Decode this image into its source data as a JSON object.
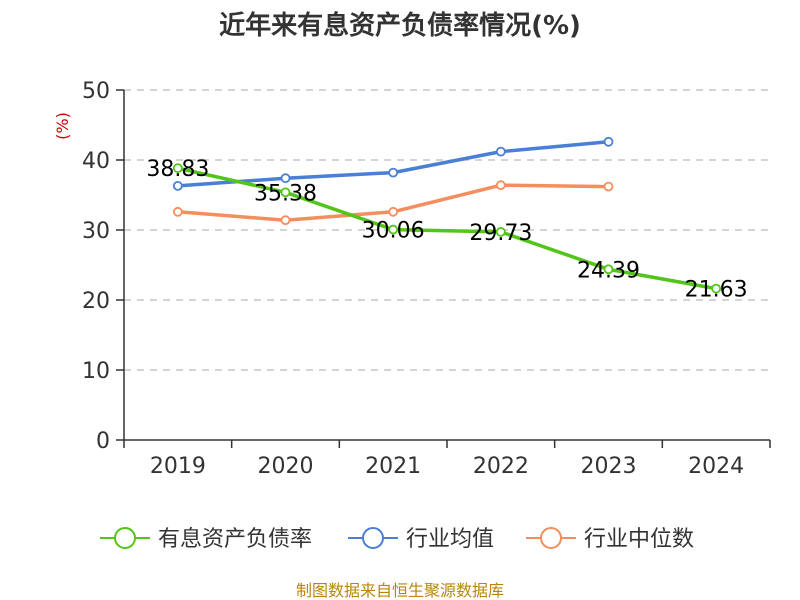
{
  "chart_data": {
    "type": "line",
    "title": "近年来有息资产负债率情况(%)",
    "ylabel": "(%)",
    "xlabel": "",
    "categories": [
      "2019",
      "2020",
      "2021",
      "2022",
      "2023",
      "2024"
    ],
    "ylim": [
      0,
      50
    ],
    "yticks": [
      0,
      10,
      20,
      30,
      40,
      50
    ],
    "grid": true,
    "legend_position": "bottom",
    "series": [
      {
        "name": "有息资产负债率",
        "color": "#52c41a",
        "values": [
          38.83,
          35.38,
          30.06,
          29.73,
          24.39,
          21.63
        ],
        "labels": [
          "38.83",
          "35.38",
          "30.06",
          "29.73",
          "24.39",
          "21.63"
        ],
        "show_labels": true
      },
      {
        "name": "行业均值",
        "color": "#4a7fd6",
        "values": [
          36.3,
          37.4,
          38.2,
          41.2,
          42.6,
          null
        ],
        "show_labels": false
      },
      {
        "name": "行业中位数",
        "color": "#f58d5c",
        "values": [
          32.6,
          31.4,
          32.6,
          36.4,
          36.2,
          null
        ],
        "show_labels": false
      }
    ],
    "source": "制图数据来自恒生聚源数据库"
  }
}
